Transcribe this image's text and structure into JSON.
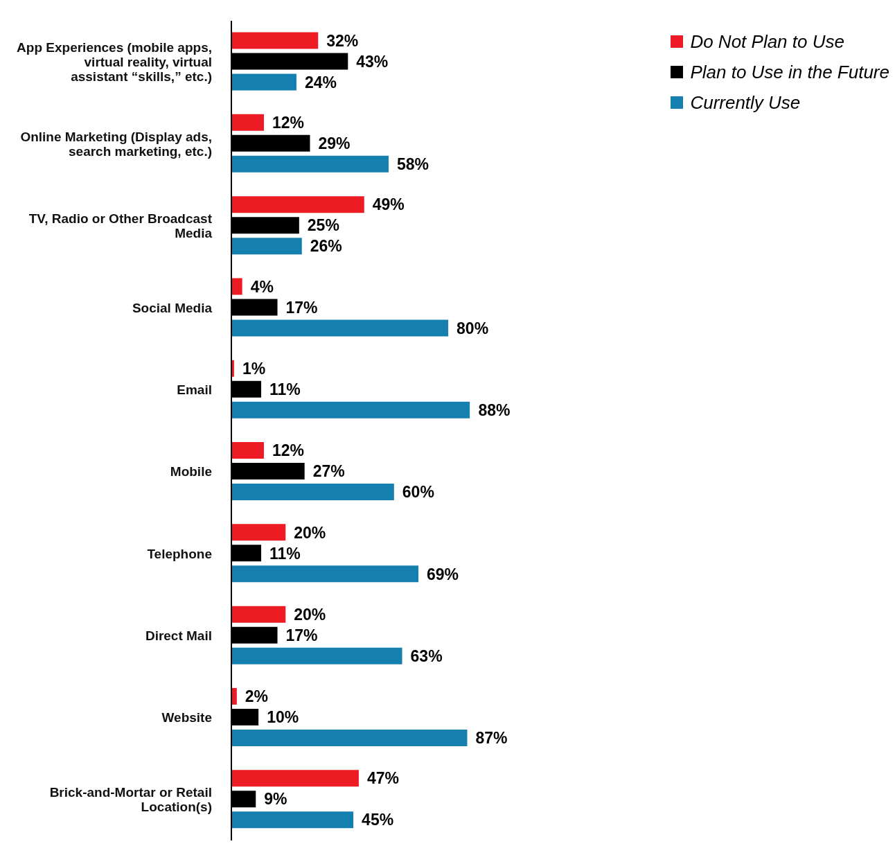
{
  "chart_data": {
    "type": "bar",
    "orientation": "horizontal",
    "legend": "top right",
    "categories": [
      "App Experiences (mobile apps, virtual reality, virtual assistant “skills,” etc.)",
      "Online Marketing (Display ads, search marketing, etc.)",
      "TV, Radio or Other Broadcast Media",
      "Social Media",
      "Email",
      "Mobile",
      "Telephone",
      "Direct Mail",
      "Website",
      "Brick-and-Mortar or Retail Location(s)"
    ],
    "series": [
      {
        "name": "Do Not Plan to Use",
        "color": "#ed1c24",
        "values": [
          32,
          12,
          49,
          4,
          1,
          12,
          20,
          20,
          2,
          47
        ],
        "value_labels": [
          "32%",
          "12%",
          "49%",
          "4%",
          "1%",
          "12%",
          "20%",
          "20%",
          "2%",
          "47%"
        ]
      },
      {
        "name": "Plan to Use in the Future",
        "color": "#000000",
        "values": [
          43,
          29,
          25,
          17,
          11,
          27,
          11,
          17,
          10,
          9
        ],
        "value_labels": [
          "43%",
          "29%",
          "25%",
          "17%",
          "11%",
          "27%",
          "11%",
          "17%",
          "10%",
          "9%"
        ]
      },
      {
        "name": "Currently Use",
        "color": "#1580b0",
        "values": [
          24,
          58,
          26,
          80,
          88,
          60,
          69,
          63,
          87,
          45
        ],
        "value_labels": [
          "24%",
          "58%",
          "26%",
          "80%",
          "88%",
          "60%",
          "69%",
          "63%",
          "87%",
          "45%"
        ]
      }
    ]
  }
}
